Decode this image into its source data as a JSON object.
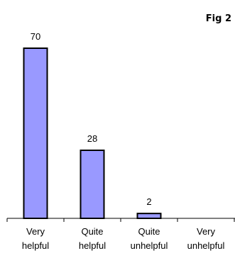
{
  "figure_label": "Fig 2",
  "chart_data": {
    "type": "bar",
    "title": "",
    "xlabel": "",
    "ylabel": "",
    "categories": [
      [
        "Very",
        "helpful"
      ],
      [
        "Quite",
        "helpful"
      ],
      [
        "Quite",
        "unhelpful"
      ],
      [
        "Very",
        "unhelpful"
      ]
    ],
    "values": [
      70,
      28,
      2,
      0
    ],
    "data_labels": [
      "70",
      "28",
      "2",
      ""
    ],
    "ylim": [
      0,
      80
    ],
    "grid": false,
    "legend": "none",
    "bar_color": "#9999ff",
    "bar_edge_color": "#000000"
  }
}
